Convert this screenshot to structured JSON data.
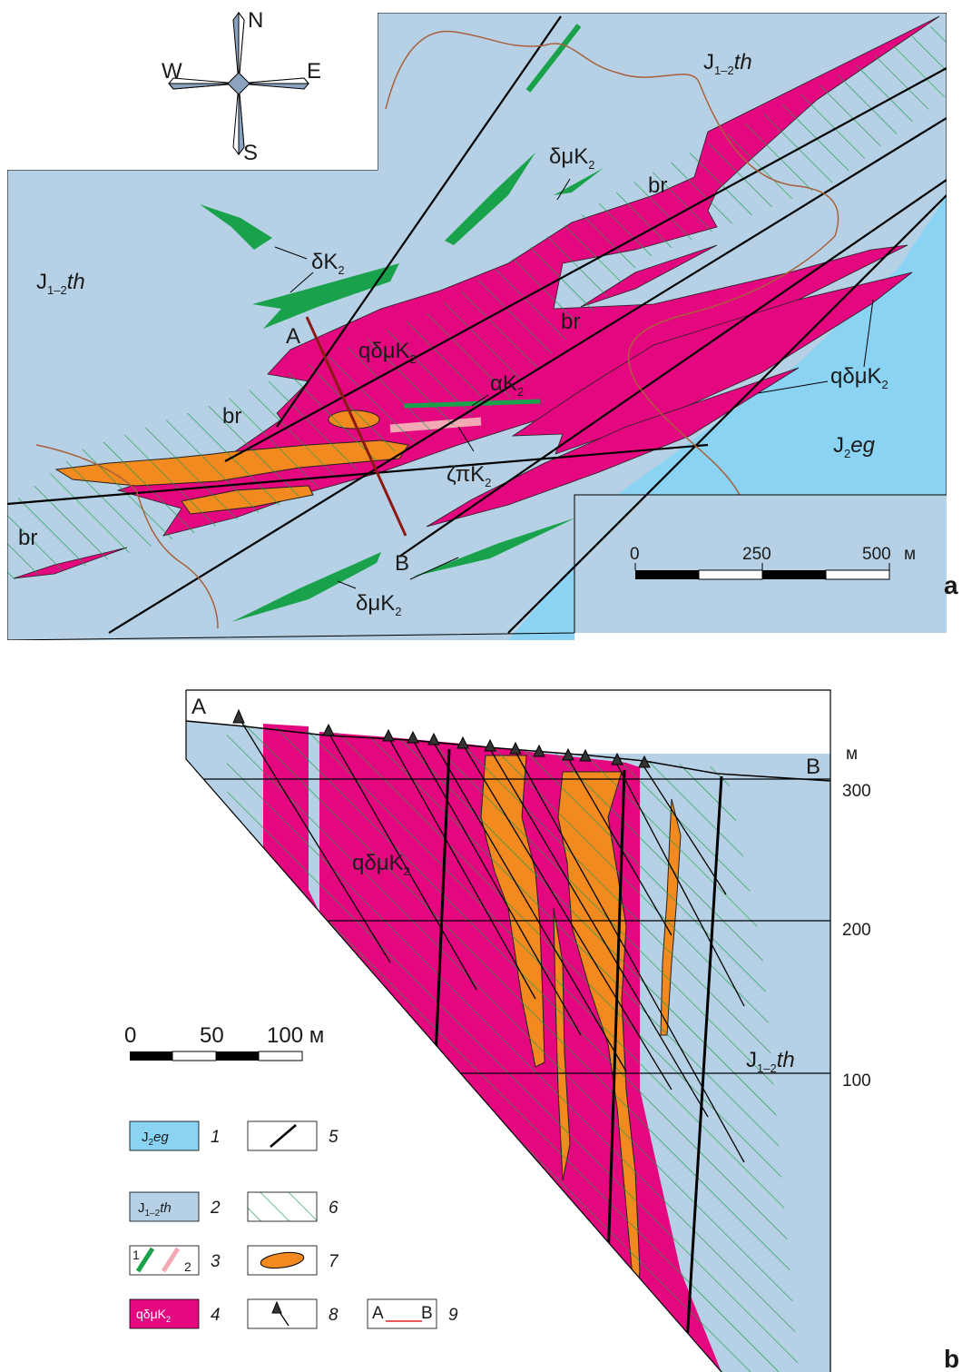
{
  "compass": {
    "n": "N",
    "s": "S",
    "e": "E",
    "w": "W"
  },
  "panel_a": {
    "letter": "a",
    "labels": {
      "th_top": {
        "main": "J",
        "sub": "1–2",
        "it": "th"
      },
      "th_left": {
        "main": "J",
        "sub": "1–2",
        "it": "th"
      },
      "eg": {
        "main": "J",
        "sub": "2",
        "it": "eg"
      },
      "dmk_top": {
        "main": "δμK",
        "sub": "2"
      },
      "dk": {
        "main": "δK",
        "sub": "2"
      },
      "qdmk_center": {
        "main": "qδμK",
        "sub": "2"
      },
      "qdmk_right": {
        "main": "qδμK",
        "sub": "2"
      },
      "ak": {
        "main": "αK",
        "sub": "2"
      },
      "zpk": {
        "main": "ζπK",
        "sub": "2"
      },
      "dmk_bottom": {
        "main": "δμK",
        "sub": "2"
      },
      "br1": "br",
      "br2": "br",
      "br3": "br",
      "br4": "br",
      "a": "A",
      "b": "B"
    },
    "scale": {
      "t0": "0",
      "t1": "250",
      "t2": "500",
      "unit": "м"
    }
  },
  "panel_b": {
    "letter": "b",
    "a": "A",
    "b": "B",
    "unit": "м",
    "elevations": [
      "300",
      "200",
      "100"
    ],
    "qdmk": {
      "main": "qδμK",
      "sub": "2"
    },
    "th": {
      "main": "J",
      "sub": "1–2",
      "it": "th"
    },
    "scale": {
      "t0": "0",
      "t1": "50",
      "t2": "100 м"
    }
  },
  "legend": {
    "items": [
      {
        "num": "1",
        "label_main": "J",
        "label_sub": "2",
        "label_it": "eg"
      },
      {
        "num": "2",
        "label_main": "J",
        "label_sub": "1–2",
        "label_it": "th"
      },
      {
        "num": "3",
        "sub1": "1",
        "sub2": "2"
      },
      {
        "num": "4",
        "label_main": "qδμK",
        "label_sub": "2"
      },
      {
        "num": "5"
      },
      {
        "num": "6"
      },
      {
        "num": "7"
      },
      {
        "num": "8"
      },
      {
        "num": "9",
        "a": "A",
        "b": "B"
      }
    ]
  },
  "colors": {
    "th": "#b6d1e5",
    "eg": "#8ad3f3",
    "porphyry": "#e4077f",
    "dike_green": "#19a24b",
    "dike_pink": "#f3a9b3",
    "ore": "#f28a20",
    "hatch": "#1f9a4a",
    "section_line": "#8b1a14",
    "contour": "#a8613b"
  }
}
